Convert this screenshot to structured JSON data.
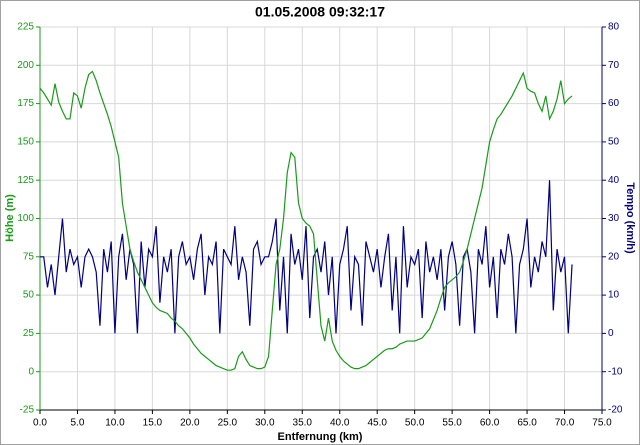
{
  "chart_data": {
    "type": "line",
    "title": "01.05.2008 09:32:17",
    "xlabel": "Entfernung (km)",
    "ylabel": "Höhe (m)",
    "y2label": "Tempo (km/h)",
    "xlim": [
      0,
      75
    ],
    "ylim": [
      -25,
      225
    ],
    "y2lim": [
      -20,
      80
    ],
    "xticks": [
      {
        "value": 0,
        "label": "0.0"
      },
      {
        "value": 5,
        "label": "5.0"
      },
      {
        "value": 10,
        "label": "10.0"
      },
      {
        "value": 15,
        "label": "15.0"
      },
      {
        "value": 20,
        "label": "20.0"
      },
      {
        "value": 25,
        "label": "25.0"
      },
      {
        "value": 30,
        "label": "30.0"
      },
      {
        "value": 35,
        "label": "35.0"
      },
      {
        "value": 40,
        "label": "40.0"
      },
      {
        "value": 45,
        "label": "45.0"
      },
      {
        "value": 50,
        "label": "50.0"
      },
      {
        "value": 55,
        "label": "55.0"
      },
      {
        "value": 60,
        "label": "60.0"
      },
      {
        "value": 65,
        "label": "65.0"
      },
      {
        "value": 70,
        "label": "70.0"
      },
      {
        "value": 75,
        "label": "75.0"
      }
    ],
    "yticks": [
      -25,
      0,
      25,
      50,
      75,
      100,
      125,
      150,
      175,
      200,
      225
    ],
    "y2ticks": [
      -20,
      -10,
      0,
      10,
      20,
      30,
      40,
      50,
      60,
      70,
      80
    ],
    "grid": true,
    "x": [
      0,
      0.5,
      1,
      1.5,
      2,
      2.5,
      3,
      3.5,
      4,
      4.5,
      5,
      5.5,
      6,
      6.5,
      7,
      7.5,
      8,
      8.5,
      9,
      9.5,
      10,
      10.5,
      11,
      11.5,
      12,
      12.5,
      13,
      13.5,
      14,
      14.5,
      15,
      15.5,
      16,
      16.5,
      17,
      17.5,
      18,
      18.5,
      19,
      19.5,
      20,
      20.5,
      21,
      21.5,
      22,
      22.5,
      23,
      23.5,
      24,
      24.5,
      25,
      25.5,
      26,
      26.5,
      27,
      27.5,
      28,
      28.5,
      29,
      29.5,
      30,
      30.5,
      31,
      31.5,
      32,
      32.5,
      33,
      33.5,
      34,
      34.5,
      35,
      35.5,
      36,
      36.5,
      37,
      37.5,
      38,
      38.5,
      39,
      39.5,
      40,
      40.5,
      41,
      41.5,
      42,
      42.5,
      43,
      43.5,
      44,
      44.5,
      45,
      45.5,
      46,
      46.5,
      47,
      47.5,
      48,
      48.5,
      49,
      49.5,
      50,
      50.5,
      51,
      51.5,
      52,
      52.5,
      53,
      53.5,
      54,
      54.5,
      55,
      55.5,
      56,
      56.5,
      57,
      57.5,
      58,
      58.5,
      59,
      59.5,
      60,
      60.5,
      61,
      61.5,
      62,
      62.5,
      63,
      63.5,
      64,
      64.5,
      65,
      65.5,
      66,
      66.5,
      67,
      67.5,
      68,
      68.5,
      69,
      69.5,
      70,
      70.5,
      71
    ],
    "series": [
      {
        "color": "#1a9a1a",
        "axis": "y",
        "values": [
          185,
          182,
          178,
          174,
          188,
          176,
          170,
          165,
          165,
          182,
          180,
          172,
          185,
          194,
          196,
          190,
          182,
          175,
          168,
          160,
          150,
          140,
          110,
          95,
          80,
          72,
          65,
          60,
          55,
          50,
          45,
          42,
          40,
          39,
          38,
          35,
          33,
          30,
          28,
          25,
          22,
          18,
          15,
          12,
          10,
          8,
          6,
          4,
          3,
          2,
          1,
          1,
          2,
          10,
          13,
          8,
          4,
          3,
          2,
          2,
          3,
          10,
          40,
          70,
          80,
          100,
          130,
          143,
          140,
          110,
          100,
          97,
          95,
          90,
          60,
          30,
          20,
          35,
          20,
          14,
          10,
          7,
          5,
          3,
          2,
          2,
          3,
          4,
          6,
          8,
          10,
          12,
          14,
          15,
          15,
          16,
          18,
          19,
          20,
          20,
          20,
          21,
          22,
          25,
          28,
          34,
          40,
          48,
          55,
          58,
          60,
          62,
          65,
          72,
          80,
          90,
          100,
          110,
          120,
          135,
          150,
          158,
          165,
          168,
          172,
          176,
          180,
          185,
          190,
          195,
          185,
          183,
          182,
          175,
          170,
          180,
          165,
          170,
          178,
          190,
          175,
          178,
          180
        ]
      },
      {
        "color": "#000080",
        "axis": "y2",
        "values": [
          20,
          20,
          12,
          18,
          10,
          20,
          30,
          16,
          22,
          18,
          20,
          12,
          20,
          22,
          20,
          16,
          2,
          22,
          16,
          24,
          0,
          20,
          26,
          14,
          22,
          18,
          0,
          24,
          12,
          22,
          20,
          28,
          8,
          20,
          16,
          22,
          0,
          20,
          24,
          18,
          20,
          14,
          22,
          26,
          10,
          20,
          18,
          24,
          0,
          22,
          20,
          18,
          28,
          14,
          20,
          16,
          2,
          22,
          24,
          18,
          20,
          20,
          24,
          30,
          6,
          20,
          0,
          26,
          18,
          22,
          14,
          28,
          4,
          20,
          22,
          16,
          24,
          10,
          20,
          0,
          18,
          22,
          28,
          6,
          20,
          18,
          2,
          24,
          20,
          16,
          22,
          12,
          20,
          26,
          6,
          20,
          0,
          28,
          12,
          20,
          18,
          22,
          4,
          24,
          16,
          20,
          14,
          22,
          6,
          20,
          24,
          18,
          2,
          20,
          22,
          16,
          0,
          22,
          18,
          28,
          12,
          20,
          4,
          22,
          18,
          26,
          20,
          0,
          18,
          22,
          30,
          12,
          20,
          16,
          24,
          20,
          40,
          6,
          22,
          16,
          20,
          0,
          18
        ]
      }
    ]
  }
}
